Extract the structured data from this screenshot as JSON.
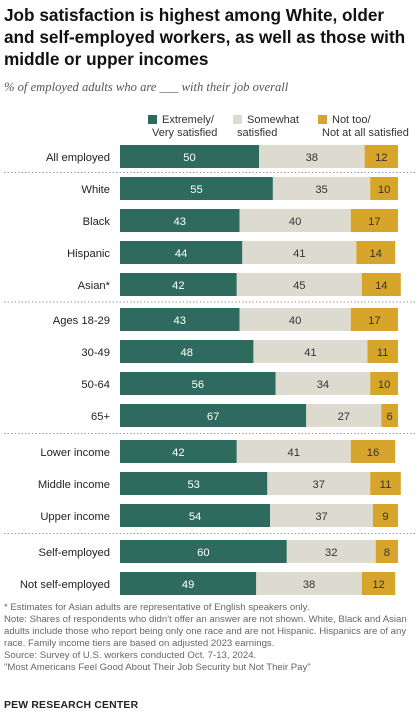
{
  "title": "Job satisfaction is highest among White, older and self-employed workers, as well as those with middle or upper incomes",
  "subtitle": "% of employed adults who are ___ with their job overall",
  "chart_data": {
    "type": "bar",
    "orientation": "horizontal",
    "stacked": true,
    "xlim": [
      0,
      100
    ],
    "grid": false,
    "legend_position": "top",
    "categories": [
      "All employed",
      "White",
      "Black",
      "Hispanic",
      "Asian*",
      "Ages 18-29",
      "30-49",
      "50-64",
      "65+",
      "Lower income",
      "Middle income",
      "Upper income",
      "Self-employed",
      "Not self-employed"
    ],
    "groups": [
      {
        "rows": [
          0
        ]
      },
      {
        "rows": [
          1,
          2,
          3,
          4
        ]
      },
      {
        "rows": [
          5,
          6,
          7,
          8
        ]
      },
      {
        "rows": [
          9,
          10,
          11
        ]
      },
      {
        "rows": [
          12,
          13
        ]
      }
    ],
    "series": [
      {
        "name": "Extremely/\nVery satisfied",
        "color": "#2e6b5e",
        "label_color": "#ffffff",
        "values": [
          50,
          55,
          43,
          44,
          42,
          43,
          48,
          56,
          67,
          42,
          53,
          54,
          60,
          49
        ]
      },
      {
        "name": "Somewhat\nsatisfied",
        "color": "#dddbd0",
        "label_color": "#333333",
        "values": [
          38,
          35,
          40,
          41,
          45,
          40,
          41,
          34,
          27,
          41,
          37,
          37,
          32,
          38
        ]
      },
      {
        "name": "Not too/\nNot at all satisfied",
        "color": "#d8a52c",
        "label_color": "#333333",
        "values": [
          12,
          10,
          17,
          14,
          14,
          17,
          11,
          10,
          6,
          16,
          11,
          9,
          8,
          12
        ]
      }
    ]
  },
  "notes": [
    "* Estimates for Asian adults are representative of English speakers only.",
    "Note: Shares of respondents who didn't offer an answer are not shown. White, Black and Asian adults include those who report being only one race and are not Hispanic. Hispanics are of any race. Family income tiers are based on adjusted 2023 earnings.",
    "Source: Survey of U.S. workers conducted Oct. 7-13, 2024.",
    "\"Most Americans Feel Good About Their Job Security but Not Their Pay\""
  ],
  "brand": "PEW RESEARCH CENTER"
}
